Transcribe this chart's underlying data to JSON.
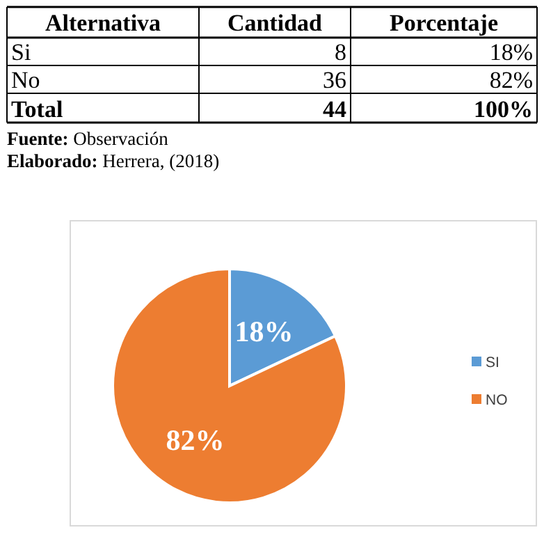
{
  "chart_data": [
    {
      "type": "other",
      "xlabel": "Alternativa",
      "categories": [
        "Si",
        "No",
        "Total"
      ],
      "series": [
        {
          "name": "Cantidad",
          "values": [
            8,
            36,
            44
          ]
        },
        {
          "name": "Porcentaje",
          "values": [
            18,
            82,
            100
          ],
          "value_labels": [
            "18%",
            "82%",
            "100%"
          ]
        }
      ],
      "data_labels": true,
      "annotations": [
        "Fuente: Observación",
        "Elaborado: Herrera, (2018)"
      ]
    },
    {
      "type": "pie",
      "categories": [
        "SI",
        "NO"
      ],
      "values": [
        18,
        82
      ],
      "colors": [
        "#5b9bd5",
        "#ed7d31"
      ],
      "value_labels": [
        "18%",
        "82%"
      ],
      "legend": "right"
    }
  ]
}
